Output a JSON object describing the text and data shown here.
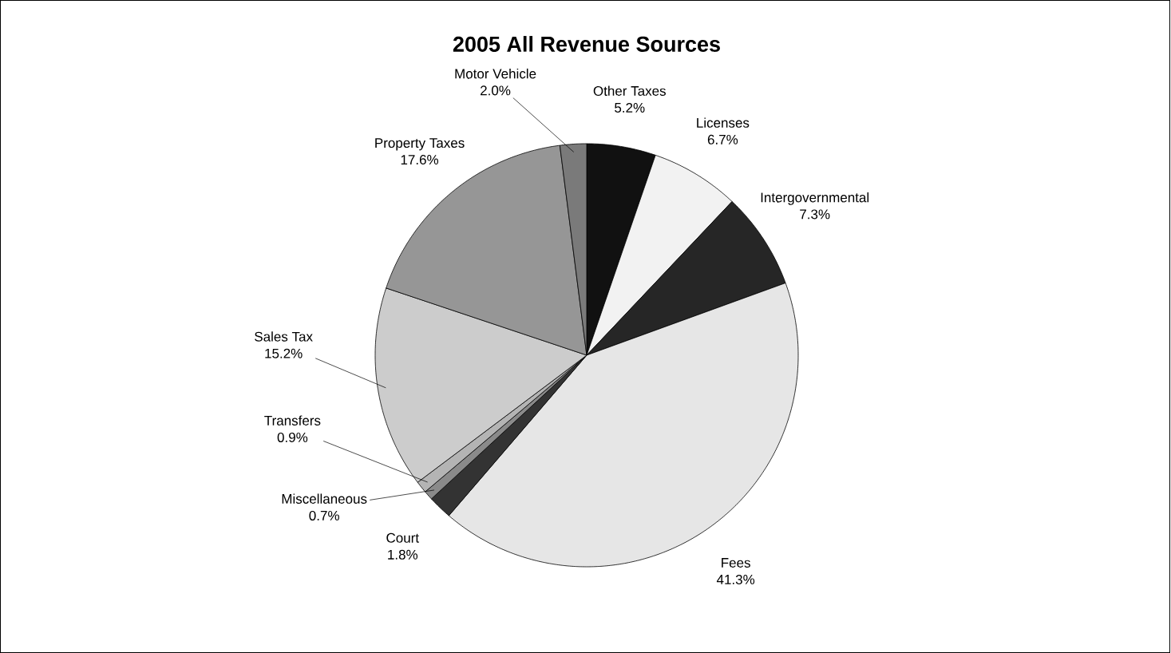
{
  "chart_data": {
    "type": "pie",
    "title": "2005 All Revenue Sources",
    "categories": [
      "Other Taxes",
      "Licenses",
      "Intergovernmental",
      "Fees",
      "Court",
      "Miscellaneous",
      "Transfers",
      "Sales Tax",
      "Property Taxes",
      "Motor Vehicle"
    ],
    "values": [
      5.2,
      6.7,
      7.3,
      41.3,
      1.8,
      0.7,
      0.9,
      15.2,
      17.6,
      2.0
    ],
    "value_labels": [
      "5.2%",
      "6.7%",
      "7.3%",
      "41.3%",
      "1.8%",
      "0.7%",
      "0.9%",
      "15.2%",
      "17.6%",
      "2.0%"
    ],
    "colors": [
      "#111111",
      "#f2f2f2",
      "#262626",
      "#e6e6e6",
      "#333333",
      "#8a8a8a",
      "#b4b4b4",
      "#cccccc",
      "#969696",
      "#7a7a7a"
    ]
  }
}
